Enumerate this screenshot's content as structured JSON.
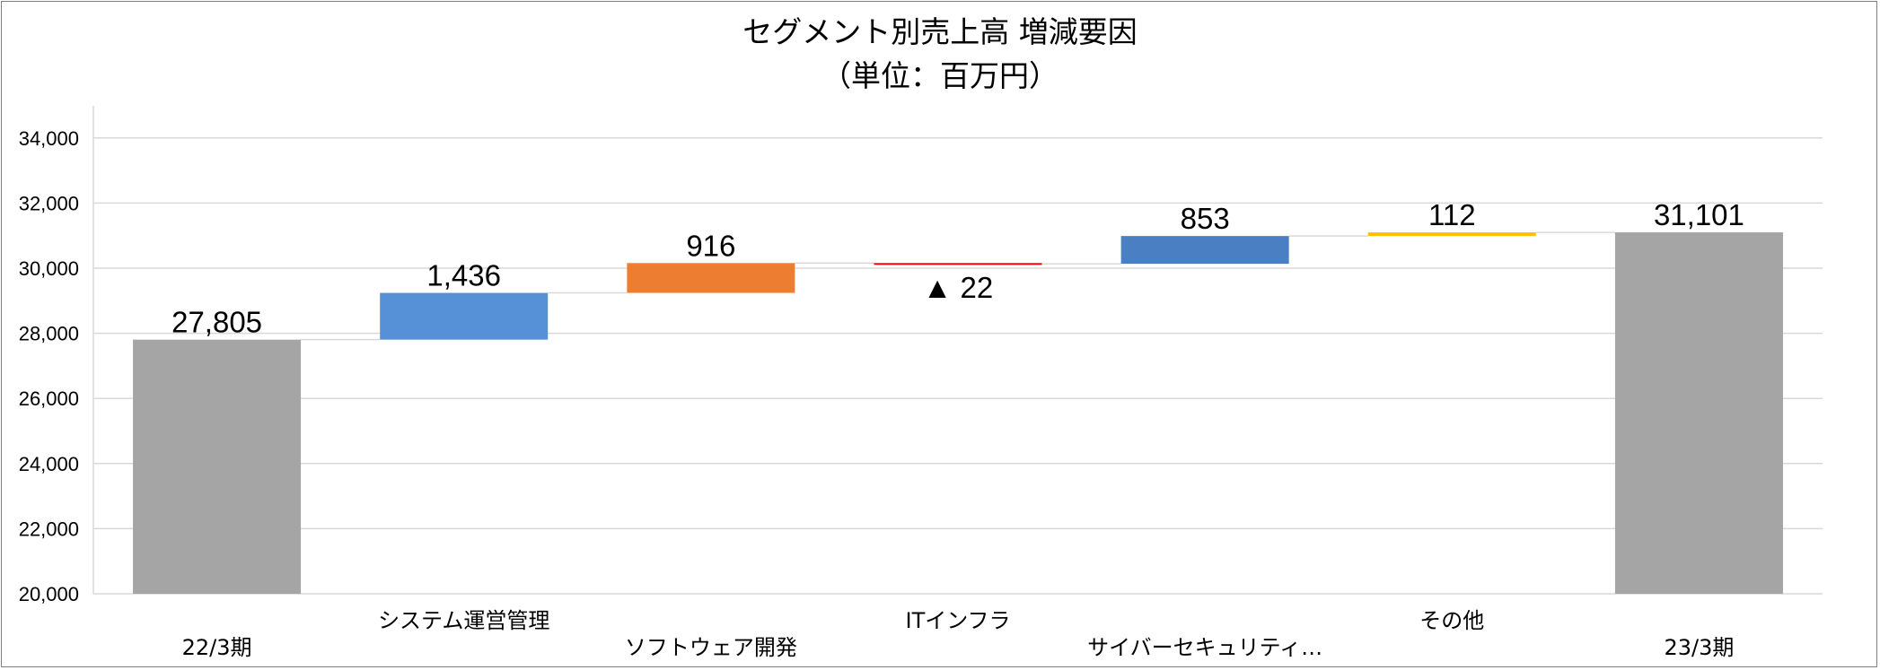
{
  "chart_data": {
    "type": "bar",
    "subtype": "waterfall",
    "title": "セグメント別売上高  増減要因",
    "subtitle": "（単位：百万円）",
    "ylim": [
      20000,
      35000
    ],
    "yticks": [
      20000,
      22000,
      24000,
      26000,
      28000,
      30000,
      32000,
      34000
    ],
    "ytick_labels": [
      "20,000",
      "22,000",
      "24,000",
      "26,000",
      "28,000",
      "30,000",
      "32,000",
      "34,000"
    ],
    "grid": true,
    "categories": [
      "22/3期",
      "システム運営管理",
      "ソフトウェア開発",
      "ITインフラ",
      "サイバーセキュリティ…",
      "その他",
      "23/3期"
    ],
    "values": [
      27805,
      1436,
      916,
      -22,
      853,
      112,
      31101
    ],
    "kinds": [
      "total",
      "delta",
      "delta",
      "delta",
      "delta",
      "delta",
      "total"
    ],
    "data_labels": [
      "27,805",
      "1,436",
      "916",
      "▲ 22",
      "853",
      "112",
      "31,101"
    ],
    "colors": [
      "#a5a5a5",
      "#5690d6",
      "#ed7d31",
      "#ff0000",
      "#4b7fc3",
      "#ffc000",
      "#a5a5a5"
    ]
  }
}
